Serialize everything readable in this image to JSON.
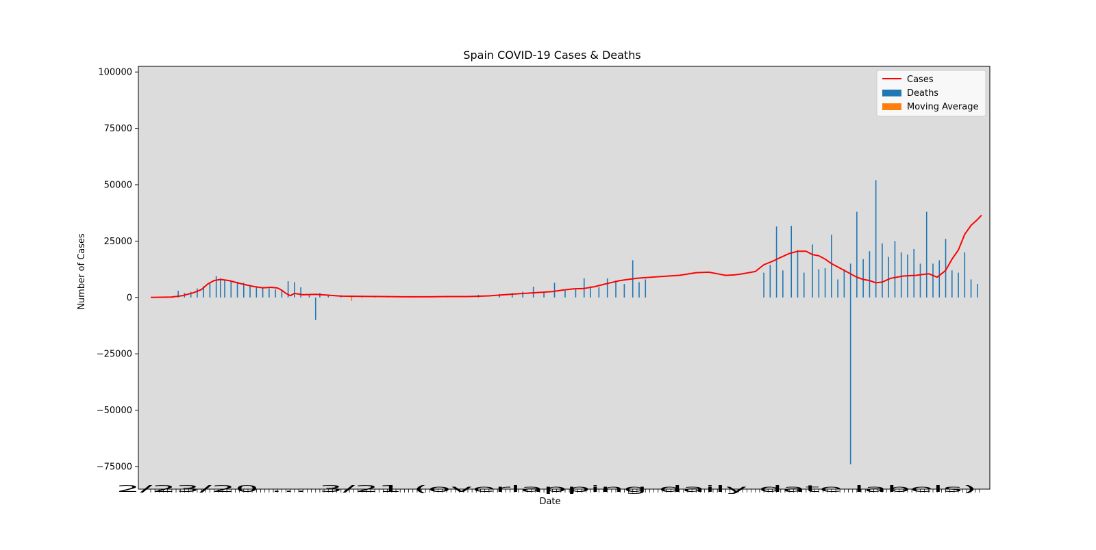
{
  "chart_data": {
    "type": "bar",
    "title": "Spain COVID-19 Cases & Deaths",
    "xlabel": "Date",
    "ylabel": "Number of Cases",
    "ylim": [
      -85000,
      102500
    ],
    "yticks": [
      -75000,
      -50000,
      -25000,
      0,
      25000,
      50000,
      75000,
      100000
    ],
    "ytick_labels": [
      "−75000",
      "−50000",
      "−25000",
      "0",
      "25000",
      "50000",
      "75000",
      "100000"
    ],
    "x_tick_text": "2/23/20 … 3/21 (overlapping daily date labels)",
    "legend": {
      "position": "upper right",
      "entries": [
        "Cases",
        "Deaths",
        "Moving Average"
      ]
    },
    "background_color": "#dcdcdc",
    "colors": {
      "Cases": "#ff0000",
      "Deaths": "#1f77b4",
      "Moving Average": "#ff7f0e"
    },
    "n_days": 393,
    "deaths_bars": [
      [
        10,
        500
      ],
      [
        13,
        3000
      ],
      [
        16,
        2000
      ],
      [
        19,
        2500
      ],
      [
        22,
        4000
      ],
      [
        25,
        5000
      ],
      [
        28,
        6500
      ],
      [
        31,
        9500
      ],
      [
        33,
        8500
      ],
      [
        35,
        8000
      ],
      [
        38,
        7500
      ],
      [
        41,
        7000
      ],
      [
        44,
        6500
      ],
      [
        47,
        5500
      ],
      [
        50,
        5000
      ],
      [
        53,
        4500
      ],
      [
        56,
        4000
      ],
      [
        59,
        3500
      ],
      [
        62,
        3000
      ],
      [
        65,
        7200
      ],
      [
        68,
        6800
      ],
      [
        71,
        4500
      ],
      [
        75,
        1500
      ],
      [
        78,
        -10000
      ],
      [
        80,
        2000
      ],
      [
        84,
        1200
      ],
      [
        90,
        1000
      ],
      [
        95,
        800
      ],
      [
        100,
        600
      ],
      [
        106,
        300
      ],
      [
        112,
        200
      ],
      [
        125,
        300
      ],
      [
        140,
        400
      ],
      [
        155,
        1200
      ],
      [
        165,
        1500
      ],
      [
        171,
        2000
      ],
      [
        176,
        2600
      ],
      [
        181,
        4800
      ],
      [
        186,
        2400
      ],
      [
        191,
        6500
      ],
      [
        196,
        3000
      ],
      [
        201,
        3500
      ],
      [
        205,
        8500
      ],
      [
        208,
        5000
      ],
      [
        212,
        4500
      ],
      [
        216,
        8500
      ],
      [
        220,
        7500
      ],
      [
        224,
        6000
      ],
      [
        228,
        16500
      ],
      [
        231,
        6800
      ],
      [
        234,
        8000
      ],
      [
        290,
        11000
      ],
      [
        293,
        14500
      ],
      [
        296,
        31500
      ],
      [
        299,
        12000
      ],
      [
        303,
        31800
      ],
      [
        306,
        21000
      ],
      [
        309,
        11000
      ],
      [
        313,
        23500
      ],
      [
        316,
        12500
      ],
      [
        319,
        13000
      ],
      [
        322,
        27800
      ],
      [
        325,
        8000
      ],
      [
        328,
        12500
      ],
      [
        331,
        15000
      ],
      [
        334,
        38000
      ],
      [
        337,
        17000
      ],
      [
        340,
        20500
      ],
      [
        343,
        52000
      ],
      [
        346,
        24000
      ],
      [
        349,
        18000
      ],
      [
        352,
        25000
      ],
      [
        355,
        20000
      ],
      [
        358,
        19000
      ],
      [
        361,
        21500
      ],
      [
        364,
        15000
      ],
      [
        367,
        38000
      ],
      [
        370,
        15000
      ],
      [
        373,
        16500
      ],
      [
        376,
        26000
      ],
      [
        379,
        12000
      ],
      [
        382,
        11000
      ],
      [
        385,
        20000
      ],
      [
        388,
        8000
      ],
      [
        391,
        6000
      ]
    ],
    "deaths_bars_note": "x in day index (0 = 2/23/20), y in number of cases",
    "cases_line": [
      [
        0,
        0
      ],
      [
        10,
        200
      ],
      [
        15,
        800
      ],
      [
        20,
        2000
      ],
      [
        24,
        3500
      ],
      [
        27,
        6000
      ],
      [
        30,
        7500
      ],
      [
        33,
        8000
      ],
      [
        37,
        7500
      ],
      [
        41,
        6500
      ],
      [
        45,
        5600
      ],
      [
        49,
        4800
      ],
      [
        53,
        4300
      ],
      [
        57,
        4500
      ],
      [
        60,
        4200
      ],
      [
        62,
        3200
      ],
      [
        64,
        1800
      ],
      [
        66,
        800
      ],
      [
        68,
        1800
      ],
      [
        72,
        1200
      ],
      [
        78,
        1400
      ],
      [
        84,
        1000
      ],
      [
        90,
        600
      ],
      [
        100,
        500
      ],
      [
        110,
        400
      ],
      [
        120,
        300
      ],
      [
        130,
        300
      ],
      [
        140,
        400
      ],
      [
        150,
        400
      ],
      [
        160,
        700
      ],
      [
        170,
        1400
      ],
      [
        180,
        2000
      ],
      [
        190,
        2600
      ],
      [
        195,
        3300
      ],
      [
        200,
        3800
      ],
      [
        205,
        4000
      ],
      [
        210,
        4800
      ],
      [
        215,
        6000
      ],
      [
        222,
        7500
      ],
      [
        230,
        8500
      ],
      [
        240,
        9200
      ],
      [
        250,
        9800
      ],
      [
        258,
        11000
      ],
      [
        264,
        11200
      ],
      [
        268,
        10500
      ],
      [
        272,
        9800
      ],
      [
        276,
        10000
      ],
      [
        280,
        10500
      ],
      [
        286,
        11500
      ],
      [
        290,
        14500
      ],
      [
        294,
        16000
      ],
      [
        298,
        17800
      ],
      [
        302,
        19500
      ],
      [
        306,
        20500
      ],
      [
        310,
        20500
      ],
      [
        313,
        19000
      ],
      [
        316,
        18500
      ],
      [
        319,
        17000
      ],
      [
        322,
        15000
      ],
      [
        325,
        13500
      ],
      [
        328,
        12000
      ],
      [
        331,
        10500
      ],
      [
        334,
        9000
      ],
      [
        337,
        8000
      ],
      [
        340,
        7500
      ],
      [
        343,
        6500
      ],
      [
        346,
        6800
      ],
      [
        350,
        8500
      ],
      [
        356,
        9500
      ],
      [
        362,
        9800
      ],
      [
        365,
        10200
      ],
      [
        368,
        10500
      ],
      [
        372,
        9000
      ],
      [
        376,
        12000
      ],
      [
        379,
        17000
      ],
      [
        382,
        21000
      ],
      [
        385,
        28000
      ],
      [
        388,
        32000
      ],
      [
        391,
        34500
      ],
      [
        393,
        36500
      ]
    ],
    "moving_average_bars": [
      [
        95,
        -1500
      ],
      [
        96,
        -300
      ]
    ]
  }
}
